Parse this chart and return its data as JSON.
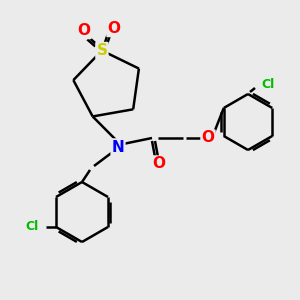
{
  "background_color": "#ebebeb",
  "bond_color": "#000000",
  "atom_colors": {
    "S": "#cccc00",
    "O": "#ff0000",
    "N": "#0000ff",
    "Cl": "#00bb00",
    "C": "#000000"
  },
  "figsize": [
    3.0,
    3.0
  ],
  "dpi": 100
}
